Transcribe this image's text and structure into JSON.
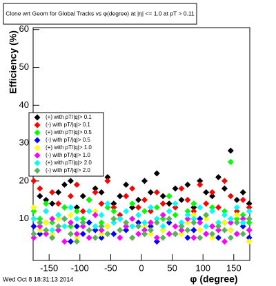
{
  "chart_data": {
    "type": "scatter",
    "title": "Clone wrt Geom for Global Tracks vs φ(degree) at |η| <= 1.0 at pT > 0.11",
    "x_label": "φ (degree)",
    "y_label": "Efficiency (%)",
    "footer": "Wed Oct  8 18:31:13 2014",
    "xlim": [
      -176,
      176
    ],
    "ylim": [
      -1,
      60.5
    ],
    "xticks": [
      -150,
      -100,
      -50,
      0,
      50,
      100,
      150
    ],
    "yticks": [
      10,
      20,
      30,
      40,
      50,
      60
    ],
    "x": [
      -175,
      -165,
      -155,
      -145,
      -135,
      -125,
      -115,
      -105,
      -95,
      -85,
      -75,
      -65,
      -55,
      -45,
      -35,
      -25,
      -15,
      -5,
      5,
      15,
      25,
      35,
      45,
      55,
      65,
      75,
      85,
      95,
      105,
      115,
      125,
      135,
      145,
      155,
      165,
      175
    ],
    "series": [
      {
        "name": "(+) with pT/|q|> 0.1",
        "color": "#000000",
        "values": [
          22,
          16,
          15,
          14,
          17,
          19,
          20,
          13,
          16,
          15,
          18,
          17,
          21,
          14,
          16,
          19,
          13,
          15,
          20,
          17,
          22,
          16,
          14,
          18,
          15,
          19,
          13,
          20,
          17,
          16,
          21,
          18,
          28,
          15,
          17,
          14
        ]
      },
      {
        "name": "(-) with pT/|q|> 0.1",
        "color": "#ff0000",
        "values": [
          20,
          18,
          12,
          17,
          14,
          13,
          16,
          19,
          12,
          15,
          17,
          14,
          20,
          13,
          11,
          16,
          18,
          13,
          15,
          12,
          17,
          14,
          16,
          13,
          18,
          15,
          12,
          19,
          14,
          17,
          13,
          20,
          16,
          12,
          15,
          13
        ]
      },
      {
        "name": "(+) with pT/|q|> 0.5",
        "color": "#00ff00",
        "values": [
          12,
          10,
          14,
          9,
          11,
          13,
          8,
          12,
          10,
          15,
          11,
          9,
          13,
          12,
          10,
          8,
          14,
          11,
          12,
          9,
          13,
          10,
          16,
          11,
          9,
          12,
          14,
          10,
          11,
          13,
          9,
          12,
          25,
          10,
          11,
          9
        ]
      },
      {
        "name": "(-) with pT/|q|> 0.5",
        "color": "#0000ff",
        "values": [
          8,
          6,
          9,
          5,
          7,
          10,
          4,
          8,
          6,
          9,
          7,
          5,
          8,
          6,
          10,
          7,
          5,
          9,
          6,
          8,
          4,
          7,
          9,
          6,
          8,
          5,
          7,
          10,
          6,
          8,
          5,
          9,
          7,
          6,
          8,
          5
        ]
      },
      {
        "name": "(+) with pT/|q|> 1.0",
        "color": "#ffff00",
        "values": [
          13,
          7,
          9,
          6,
          10,
          8,
          11,
          5,
          9,
          7,
          12,
          6,
          8,
          10,
          7,
          9,
          5,
          11,
          8,
          6,
          10,
          7,
          12,
          8,
          6,
          9,
          11,
          7,
          10,
          5,
          8,
          9,
          7,
          11,
          6,
          4
        ]
      },
      {
        "name": "(-) with pT/|q|> 1.0",
        "color": "#ff00ff",
        "values": [
          5,
          8,
          6,
          10,
          7,
          4,
          9,
          6,
          8,
          5,
          11,
          7,
          6,
          9,
          5,
          8,
          10,
          6,
          7,
          9,
          5,
          11,
          6,
          8,
          7,
          10,
          5,
          9,
          6,
          8,
          7,
          4,
          9,
          6,
          10,
          7
        ]
      },
      {
        "name": "(+) with pT/|q|> 2.0",
        "color": "#00ffff",
        "values": [
          10,
          9,
          12,
          7,
          11,
          8,
          13,
          10,
          9,
          12,
          8,
          11,
          14,
          9,
          10,
          12,
          8,
          11,
          9,
          13,
          10,
          8,
          12,
          14,
          9,
          11,
          10,
          13,
          8,
          12,
          9,
          11,
          10,
          13,
          9,
          12
        ]
      },
      {
        "name": "(-) with pT/|q|> 2.0",
        "color": "#59b359",
        "values": [
          6,
          9,
          7,
          5,
          8,
          10,
          6,
          4,
          9,
          7,
          5,
          8,
          6,
          10,
          7,
          9,
          5,
          8,
          6,
          7,
          9,
          5,
          10,
          6,
          8,
          7,
          9,
          5,
          11,
          6,
          8,
          7,
          5,
          9,
          6,
          10
        ]
      }
    ]
  }
}
